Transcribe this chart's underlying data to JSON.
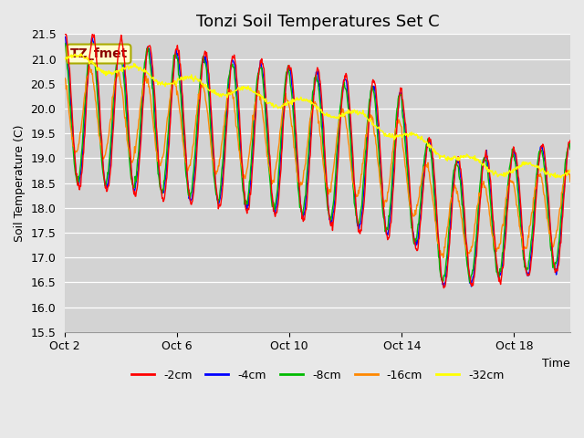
{
  "title": "Tonzi Soil Temperatures Set C",
  "xlabel": "Time",
  "ylabel": "Soil Temperature (C)",
  "ylim": [
    15.5,
    21.5
  ],
  "yticks": [
    15.5,
    16.0,
    16.5,
    17.0,
    17.5,
    18.0,
    18.5,
    19.0,
    19.5,
    20.0,
    20.5,
    21.0,
    21.5
  ],
  "xtick_labels": [
    "Oct 2",
    "Oct 6",
    "Oct 10",
    "Oct 14",
    "Oct 18"
  ],
  "xtick_positions": [
    0,
    4,
    8,
    12,
    16
  ],
  "xlim": [
    0,
    18
  ],
  "colors": {
    "-2cm": "#ff0000",
    "-4cm": "#0000ff",
    "-8cm": "#00bb00",
    "-16cm": "#ff8800",
    "-32cm": "#ffff00"
  },
  "legend_labels": [
    "-2cm",
    "-4cm",
    "-8cm",
    "-16cm",
    "-32cm"
  ],
  "annotation_text": "TZ_fmet",
  "annotation_bg": "#ffffcc",
  "annotation_border": "#cccc00",
  "fig_bg_color": "#e8e8e8",
  "plot_bg_color": "#d3d3d3",
  "title_fontsize": 13,
  "n_points": 864,
  "n_days": 18,
  "line_width": 1.0
}
